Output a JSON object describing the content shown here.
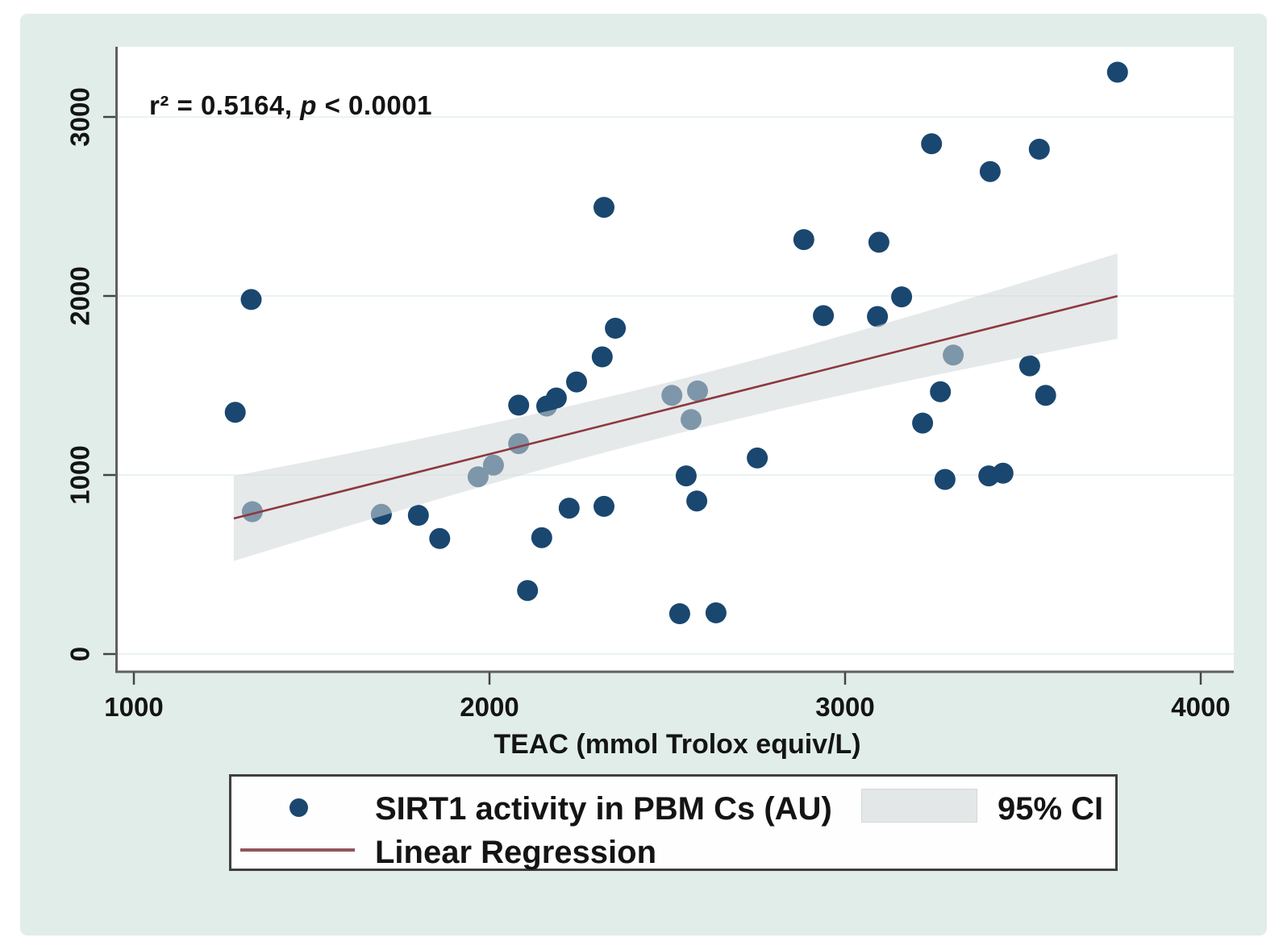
{
  "figure": {
    "page_background": "#ffffff",
    "card_background": "#e1ede9"
  },
  "annotation": {
    "r2_part": "r² = 0.5164,",
    "p_var": "p",
    "rest": "< 0.0001"
  },
  "legend": {
    "series1_label": "SIRT1 activity in PBM Cs (AU)",
    "ci_label": "95% CI",
    "series2_label": "Linear Regression"
  },
  "chart_data": {
    "type": "scatter",
    "title": "",
    "xlabel": "TEAC (mmol Trolox equiv/L)",
    "ylabel": "",
    "x_ticks": [
      1000,
      2000,
      3000,
      4000
    ],
    "y_ticks": [
      0,
      1000,
      2000,
      3000
    ],
    "xlim": [
      950,
      4090
    ],
    "ylim": [
      0,
      3390
    ],
    "grid": "horizontal",
    "legend_position": "bottom",
    "stats": {
      "r_squared": 0.5164,
      "p_value": "< 0.0001"
    },
    "style": {
      "plot_bg": "#ffffff",
      "grid_color": "#eaf3f1",
      "axis_color": "#5f5f5f",
      "tick_color": "#454545",
      "text_color": "#141414"
    },
    "series": [
      {
        "name": "SIRT1 activity in PBM Cs (AU)",
        "type": "scatter",
        "color": "#1a476f",
        "marker_radius": 13,
        "points": [
          [
            1285,
            1350
          ],
          [
            1330,
            1980
          ],
          [
            1333,
            795
          ],
          [
            1696,
            780
          ],
          [
            1800,
            775
          ],
          [
            1860,
            645
          ],
          [
            1968,
            990
          ],
          [
            2011,
            1055
          ],
          [
            2082,
            1390
          ],
          [
            2082,
            1175
          ],
          [
            2107,
            355
          ],
          [
            2147,
            650
          ],
          [
            2161,
            1385
          ],
          [
            2188,
            1430
          ],
          [
            2224,
            815
          ],
          [
            2245,
            1520
          ],
          [
            2317,
            1660
          ],
          [
            2322,
            2495
          ],
          [
            2322,
            825
          ],
          [
            2354,
            1820
          ],
          [
            2513,
            1445
          ],
          [
            2535,
            225
          ],
          [
            2553,
            995
          ],
          [
            2567,
            1310
          ],
          [
            2583,
            855
          ],
          [
            2585,
            1470
          ],
          [
            2637,
            230
          ],
          [
            2753,
            1095
          ],
          [
            2884,
            2315
          ],
          [
            2939,
            1890
          ],
          [
            3091,
            1885
          ],
          [
            3095,
            2300
          ],
          [
            3159,
            1995
          ],
          [
            3218,
            1290
          ],
          [
            3243,
            2850
          ],
          [
            3268,
            1465
          ],
          [
            3281,
            975
          ],
          [
            3304,
            1670
          ],
          [
            3404,
            995
          ],
          [
            3408,
            2695
          ],
          [
            3444,
            1010
          ],
          [
            3519,
            1610
          ],
          [
            3546,
            2820
          ],
          [
            3564,
            1445
          ],
          [
            3766,
            3250
          ]
        ]
      },
      {
        "name": "Linear Regression",
        "type": "line",
        "color": "#8d383f",
        "x_start": 1281,
        "x_end": 3766,
        "intercept": 116.5,
        "slope": 0.5
      },
      {
        "name": "95% CI",
        "type": "band",
        "fill": "#d1d7d9",
        "opacity": 0.55,
        "x_start": 1281,
        "x_end": 3766,
        "intercept": 116.5,
        "slope": 0.5,
        "half_min": 150,
        "x_center": 2520,
        "spread": 1010
      }
    ]
  }
}
